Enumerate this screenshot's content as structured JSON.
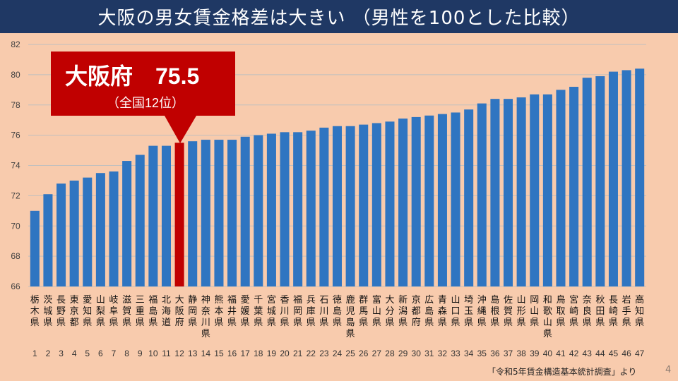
{
  "title": "大阪の男女賃金格差は大きい （男性を100とした比較）",
  "source": "「令和5年賃金構造基本統計調査」より",
  "page_number": "4",
  "callout": {
    "main": "大阪府　75.5",
    "sub": "（全国12位）",
    "highlight_index": 11
  },
  "colors": {
    "bar": "#2f75c1",
    "highlight": "#c00000",
    "title_bg": "#1f3864",
    "background": "#f8cbad",
    "grid": "#bfbfbf"
  },
  "chart_data": {
    "type": "bar",
    "ylim": [
      66,
      82
    ],
    "yticks": [
      66,
      68,
      70,
      72,
      74,
      76,
      78,
      80,
      82
    ],
    "grid": true,
    "categories": [
      "栃木県",
      "茨城県",
      "長野県",
      "東京都",
      "愛知県",
      "山梨県",
      "岐阜県",
      "滋賀県",
      "三重県",
      "福島県",
      "北海道",
      "大阪府",
      "静岡県",
      "神奈川県",
      "熊本県",
      "福井県",
      "愛媛県",
      "千葉県",
      "宮城県",
      "香川県",
      "福岡県",
      "兵庫県",
      "石川県",
      "徳島県",
      "鹿児島県",
      "群馬県",
      "富山県",
      "大分県",
      "新潟県",
      "京都府",
      "広島県",
      "青森県",
      "山口県",
      "埼玉県",
      "沖縄県",
      "島根県",
      "佐賀県",
      "山形県",
      "岡山県",
      "和歌山県",
      "鳥取県",
      "宮崎県",
      "奈良県",
      "秋田県",
      "長崎県",
      "岩手県",
      "高知県"
    ],
    "ranks": [
      "1",
      "2",
      "3",
      "4",
      "5",
      "6",
      "7",
      "8",
      "9",
      "10",
      "11",
      "12",
      "13",
      "14",
      "15",
      "16",
      "17",
      "18",
      "19",
      "20",
      "21",
      "22",
      "23",
      "24",
      "25",
      "26",
      "27",
      "28",
      "29",
      "30",
      "31",
      "32",
      "33",
      "34",
      "35",
      "36",
      "37",
      "38",
      "39",
      "40",
      "41",
      "42",
      "43",
      "44",
      "45",
      "46",
      "47"
    ],
    "values": [
      71.0,
      72.1,
      72.8,
      73.0,
      73.2,
      73.5,
      73.6,
      74.3,
      74.7,
      75.3,
      75.3,
      75.5,
      75.6,
      75.7,
      75.7,
      75.7,
      75.9,
      76.0,
      76.1,
      76.2,
      76.2,
      76.3,
      76.5,
      76.6,
      76.6,
      76.7,
      76.8,
      76.9,
      77.1,
      77.2,
      77.3,
      77.4,
      77.5,
      77.7,
      78.1,
      78.4,
      78.4,
      78.5,
      78.7,
      78.7,
      79.0,
      79.2,
      79.8,
      79.9,
      80.2,
      80.3,
      80.4
    ]
  }
}
